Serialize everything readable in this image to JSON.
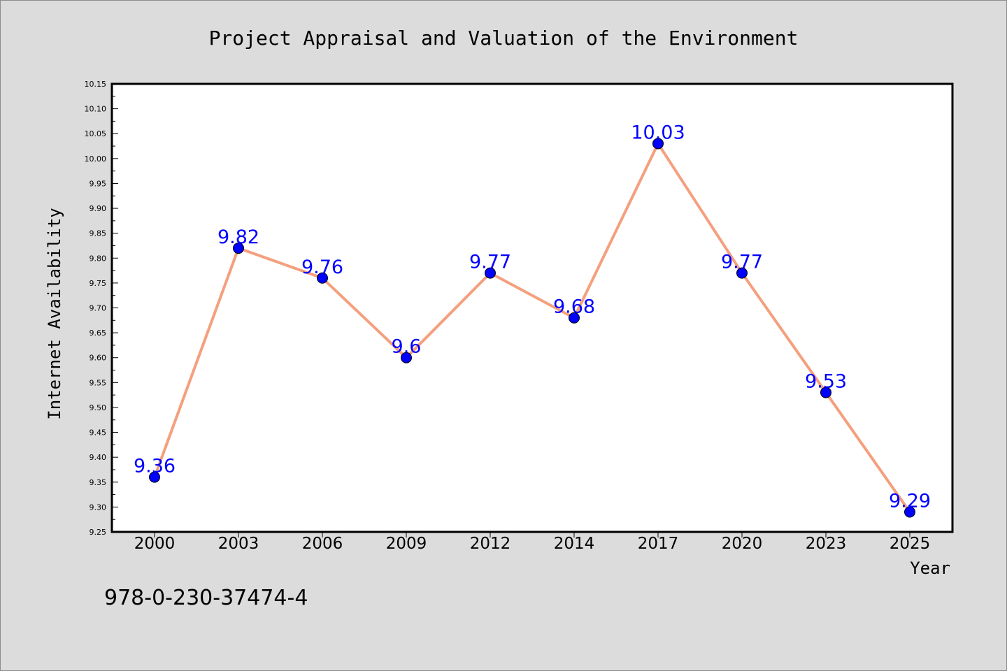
{
  "chart_data": {
    "type": "line",
    "title": "Project Appraisal and Valuation of the Environment",
    "xlabel": "Year",
    "ylabel": "Internet Availability",
    "categories": [
      "2000",
      "2003",
      "2006",
      "2009",
      "2012",
      "2014",
      "2017",
      "2020",
      "2023",
      "2025"
    ],
    "series": [
      {
        "values": [
          9.36,
          9.82,
          9.76,
          9.6,
          9.77,
          9.68,
          10.03,
          9.77,
          9.53,
          9.29
        ],
        "data_labels": [
          "9.36",
          "9.82",
          "9.76",
          "9.6",
          "9.77",
          "9.68",
          "10.03",
          "9.77",
          "9.53",
          "9.29"
        ],
        "line_color": "#f4a07e",
        "marker_color": "#0000ff",
        "label_color": "#0000ff"
      }
    ],
    "ylim": [
      9.25,
      10.15
    ],
    "yticks": [
      "9.25",
      "9.30",
      "9.35",
      "9.40",
      "9.45",
      "9.50",
      "9.55",
      "9.60",
      "9.65",
      "9.70",
      "9.75",
      "9.80",
      "9.85",
      "9.90",
      "9.95",
      "10.00",
      "10.05",
      "10.10",
      "10.15"
    ],
    "grid": false,
    "legend": "none"
  },
  "footer_text": "978-0-230-37474-4"
}
